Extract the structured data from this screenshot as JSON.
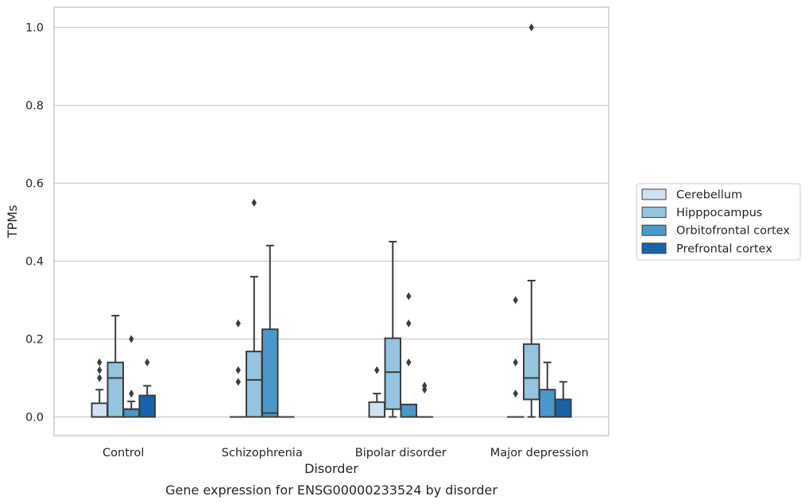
{
  "chart_data": {
    "type": "box",
    "title": "",
    "caption": "Gene expression for ENSG00000233524 by disorder",
    "xlabel": "Disorder",
    "ylabel": "TPMs",
    "ylim": [
      -0.048,
      1.052
    ],
    "yticks": [
      0.0,
      0.2,
      0.4,
      0.6,
      0.8,
      1.0
    ],
    "ytick_labels": [
      "0.0",
      "0.2",
      "0.4",
      "0.6",
      "0.8",
      "1.0"
    ],
    "grid": "horizontal",
    "legend_position": "right",
    "categories": [
      "Control",
      "Schizophrenia",
      "Bipolar disorder",
      "Major depression"
    ],
    "series": [
      {
        "name": "Cerebellum",
        "color": "#d0e1f2",
        "boxes": [
          {
            "q1": 0.0,
            "median": 0.0,
            "q3": 0.035,
            "whislo": 0.0,
            "whishi": 0.07,
            "fliers": [
              0.1,
              0.12,
              0.14
            ]
          },
          {
            "q1": 0.0,
            "median": 0.0,
            "q3": 0.0,
            "whislo": 0.0,
            "whishi": 0.0,
            "fliers": [
              0.09,
              0.12,
              0.24
            ]
          },
          {
            "q1": 0.0,
            "median": 0.0,
            "q3": 0.038,
            "whislo": 0.0,
            "whishi": 0.06,
            "fliers": [
              0.12
            ]
          },
          {
            "q1": 0.0,
            "median": 0.0,
            "q3": 0.0,
            "whislo": 0.0,
            "whishi": 0.0,
            "fliers": [
              0.06,
              0.14,
              0.3
            ]
          }
        ]
      },
      {
        "name": "Hipppocampus",
        "color": "#94c4df",
        "boxes": [
          {
            "q1": 0.0,
            "median": 0.1,
            "q3": 0.14,
            "whislo": 0.0,
            "whishi": 0.26,
            "fliers": []
          },
          {
            "q1": 0.0,
            "median": 0.095,
            "q3": 0.168,
            "whislo": 0.0,
            "whishi": 0.36,
            "fliers": [
              0.55
            ]
          },
          {
            "q1": 0.02,
            "median": 0.115,
            "q3": 0.202,
            "whislo": 0.0,
            "whishi": 0.45,
            "fliers": []
          },
          {
            "q1": 0.045,
            "median": 0.1,
            "q3": 0.187,
            "whislo": 0.0,
            "whishi": 0.35,
            "fliers": [
              1.0
            ]
          }
        ]
      },
      {
        "name": "Orbitofrontal cortex",
        "color": "#4a98c9",
        "boxes": [
          {
            "q1": 0.0,
            "median": 0.02,
            "q3": 0.02,
            "whislo": 0.0,
            "whishi": 0.04,
            "fliers": [
              0.06,
              0.2
            ]
          },
          {
            "q1": 0.0,
            "median": 0.01,
            "q3": 0.225,
            "whislo": 0.0,
            "whishi": 0.44,
            "fliers": []
          },
          {
            "q1": 0.0,
            "median": 0.0,
            "q3": 0.032,
            "whislo": 0.0,
            "whishi": 0.032,
            "fliers": [
              0.14,
              0.24,
              0.31
            ]
          },
          {
            "q1": 0.0,
            "median": 0.0,
            "q3": 0.07,
            "whislo": 0.0,
            "whishi": 0.14,
            "fliers": []
          }
        ]
      },
      {
        "name": "Prefrontal cortex",
        "color": "#1764ab",
        "boxes": [
          {
            "q1": 0.0,
            "median": 0.0,
            "q3": 0.055,
            "whislo": 0.0,
            "whishi": 0.08,
            "fliers": [
              0.14
            ]
          },
          {
            "q1": 0.0,
            "median": 0.0,
            "q3": 0.0,
            "whislo": 0.0,
            "whishi": 0.0,
            "fliers": []
          },
          {
            "q1": 0.0,
            "median": 0.0,
            "q3": 0.0,
            "whislo": 0.0,
            "whishi": 0.0,
            "fliers": [
              0.07,
              0.08
            ]
          },
          {
            "q1": 0.0,
            "median": 0.0,
            "q3": 0.045,
            "whislo": 0.0,
            "whishi": 0.09,
            "fliers": []
          }
        ]
      }
    ]
  }
}
